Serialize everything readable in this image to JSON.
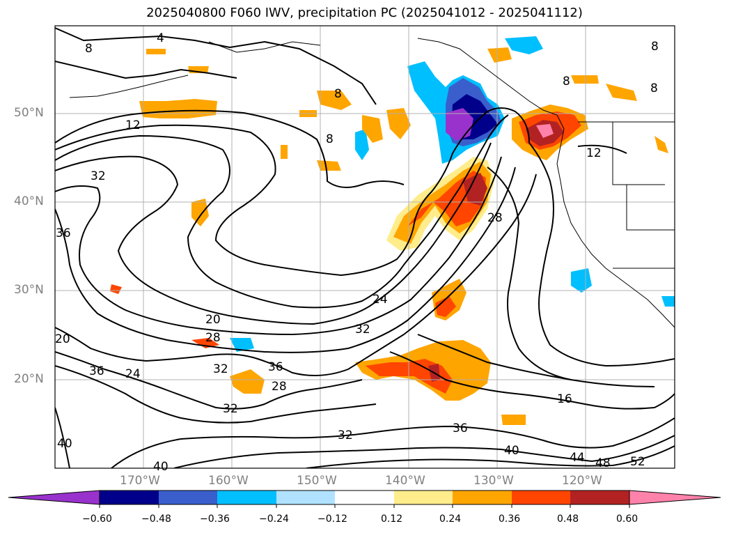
{
  "title": "2025040800 F060 IWV, precipitation PC (2025041012 - 2025041112)",
  "axes": {
    "lat_labels": [
      "50°N",
      "40°N",
      "30°N",
      "20°N"
    ],
    "lon_labels": [
      "170°W",
      "160°W",
      "150°W",
      "140°W",
      "130°W",
      "120°W"
    ]
  },
  "contour_labels": [
    "4",
    "8",
    "8",
    "8",
    "8",
    "8",
    "8",
    "12",
    "12",
    "32",
    "36",
    "20",
    "28",
    "24",
    "32",
    "24",
    "20",
    "36",
    "32",
    "36",
    "28",
    "32",
    "28",
    "16",
    "36",
    "32",
    "40",
    "44",
    "48",
    "52",
    "40",
    "40"
  ],
  "colorbar": {
    "ticks": [
      "−0.60",
      "−0.48",
      "−0.36",
      "−0.24",
      "−0.12",
      "0.12",
      "0.24",
      "0.36",
      "0.48",
      "0.60"
    ],
    "colors": [
      "#9932CC",
      "#00008B",
      "#3A5FCD",
      "#00BFFF",
      "#B0E2FF",
      "#FFFFFF",
      "#FFEC8B",
      "#FFA500",
      "#FF4500",
      "#B22222",
      "#FF82AB"
    ]
  }
}
